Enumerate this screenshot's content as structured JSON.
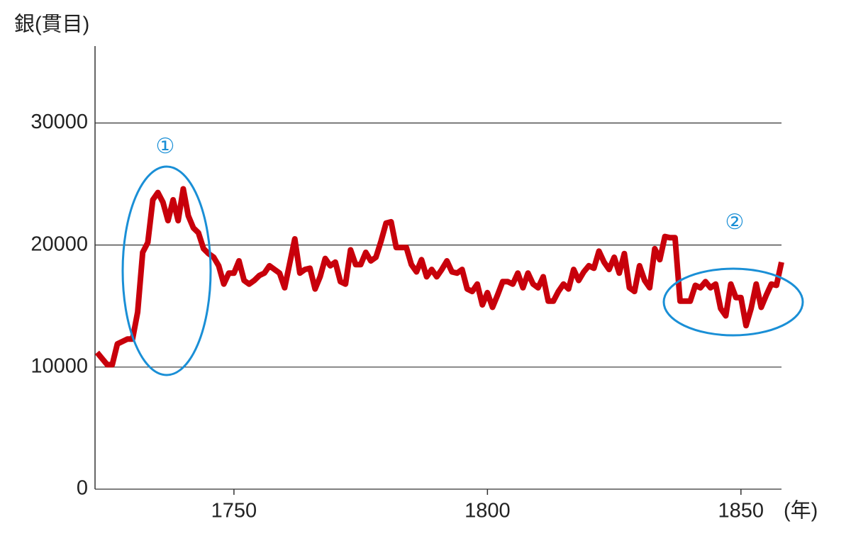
{
  "chart_data": {
    "type": "line",
    "y_label": "銀(貫目)",
    "x_label": "(年)",
    "x": [
      1723,
      1724,
      1725,
      1726,
      1727,
      1728,
      1729,
      1730,
      1731,
      1732,
      1733,
      1734,
      1735,
      1736,
      1737,
      1738,
      1739,
      1740,
      1741,
      1742,
      1743,
      1744,
      1745,
      1746,
      1747,
      1748,
      1749,
      1750,
      1751,
      1752,
      1753,
      1754,
      1755,
      1756,
      1757,
      1758,
      1759,
      1760,
      1761,
      1762,
      1763,
      1764,
      1765,
      1766,
      1767,
      1768,
      1769,
      1770,
      1771,
      1772,
      1773,
      1774,
      1775,
      1776,
      1777,
      1778,
      1779,
      1780,
      1781,
      1782,
      1783,
      1784,
      1785,
      1786,
      1787,
      1788,
      1789,
      1790,
      1791,
      1792,
      1793,
      1794,
      1795,
      1796,
      1797,
      1798,
      1799,
      1800,
      1801,
      1802,
      1803,
      1804,
      1805,
      1806,
      1807,
      1808,
      1809,
      1810,
      1811,
      1812,
      1813,
      1814,
      1815,
      1816,
      1817,
      1818,
      1819,
      1820,
      1821,
      1822,
      1823,
      1824,
      1825,
      1826,
      1827,
      1828,
      1829,
      1830,
      1831,
      1832,
      1833,
      1834,
      1835,
      1836,
      1837,
      1838,
      1839,
      1840,
      1841,
      1842,
      1843,
      1844,
      1845,
      1846,
      1847,
      1848,
      1849,
      1850,
      1851,
      1852,
      1853,
      1854,
      1855,
      1856,
      1857,
      1858
    ],
    "series": [
      {
        "color": "#c8000b",
        "values": [
          11200,
          10700,
          10200,
          10200,
          11900,
          12100,
          12300,
          12300,
          14500,
          19400,
          20200,
          23700,
          24300,
          23500,
          22000,
          23700,
          22000,
          24600,
          22400,
          21400,
          21000,
          19700,
          19300,
          19000,
          18300,
          16800,
          17700,
          17700,
          18700,
          17100,
          16800,
          17100,
          17500,
          17700,
          18300,
          18000,
          17700,
          16500,
          18500,
          20500,
          17700,
          18000,
          18100,
          16400,
          17400,
          18900,
          18300,
          18600,
          17000,
          16800,
          19600,
          18400,
          18400,
          19400,
          18700,
          19000,
          20300,
          21800,
          21900,
          19800,
          19800,
          19800,
          18400,
          17800,
          18800,
          17400,
          18000,
          17400,
          18000,
          18700,
          17800,
          17700,
          18000,
          16400,
          16200,
          16800,
          15100,
          16100,
          14900,
          15900,
          17000,
          17000,
          16800,
          17700,
          16500,
          17700,
          16800,
          16500,
          17400,
          15400,
          15400,
          16200,
          16800,
          16400,
          18000,
          17100,
          17800,
          18300,
          18100,
          19500,
          18600,
          18000,
          19000,
          17700,
          19300,
          16500,
          16200,
          18300,
          17100,
          16500,
          19700,
          18800,
          20700,
          20600,
          20600,
          15400,
          15400,
          15400,
          16700,
          16500,
          17000,
          16500,
          16800,
          14800,
          14200,
          16800,
          15700,
          15700,
          13400,
          14800,
          16800,
          14900,
          15900,
          16800,
          16700,
          18600
        ]
      }
    ],
    "xlim": [
      1722.6,
      1858
    ],
    "xticks": [
      1750,
      1800,
      1850
    ],
    "ylim": [
      0,
      36300
    ],
    "yticks": [
      0,
      10000,
      20000,
      30000
    ],
    "grid": true,
    "annotations": [
      "①",
      "②"
    ]
  }
}
